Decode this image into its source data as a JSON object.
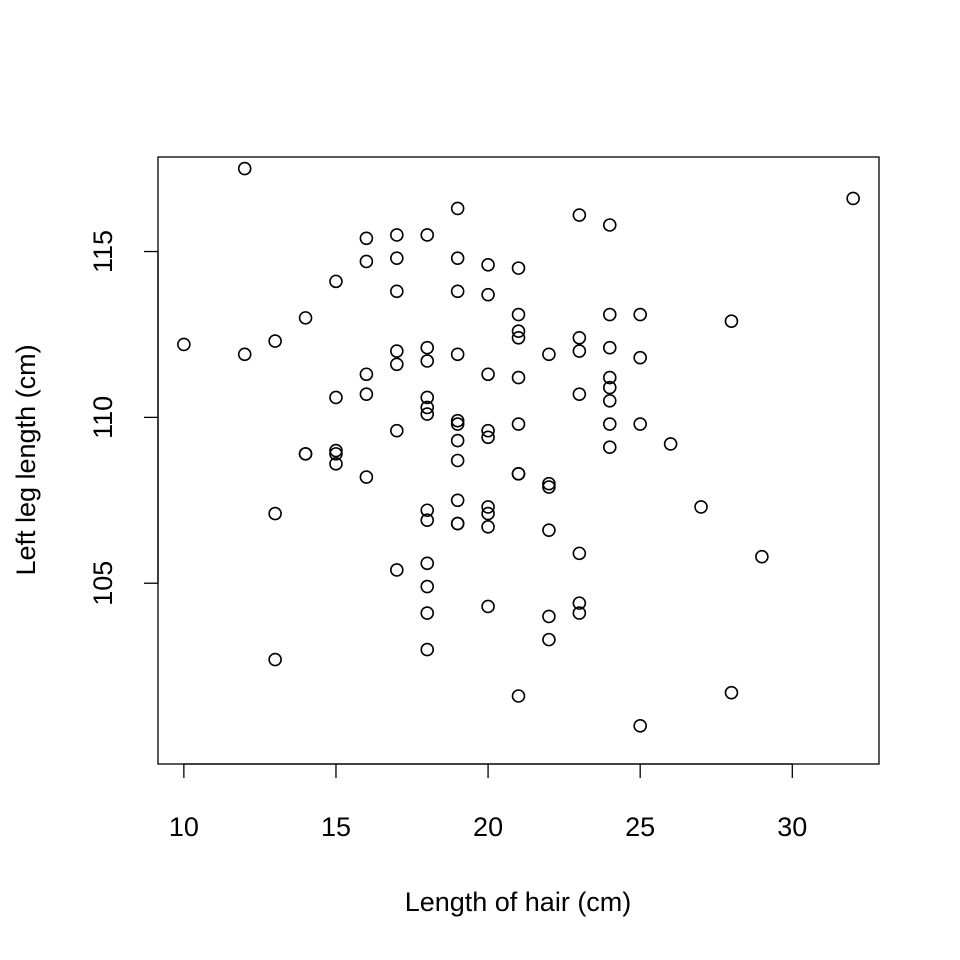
{
  "chart_data": {
    "type": "scatter",
    "title": "",
    "xlabel": "Length of hair (cm)",
    "ylabel": "Left leg length (cm)",
    "xlim": [
      9.15,
      32.85
    ],
    "ylim": [
      99.55,
      117.85
    ],
    "x_ticks": [
      10,
      15,
      20,
      25,
      30
    ],
    "y_ticks": [
      105,
      110,
      115
    ],
    "grid": false,
    "legend": "none",
    "marker": "open-circle",
    "colors": {
      "point": "#000000",
      "axis": "#000000",
      "background": "#ffffff"
    },
    "points": [
      [
        12,
        117.5
      ],
      [
        19,
        116.3
      ],
      [
        23,
        116.1
      ],
      [
        24,
        115.8
      ],
      [
        32,
        116.6
      ],
      [
        16,
        115.4
      ],
      [
        17,
        115.5
      ],
      [
        18,
        115.5
      ],
      [
        16,
        114.7
      ],
      [
        17,
        114.8
      ],
      [
        19,
        114.8
      ],
      [
        20,
        114.6
      ],
      [
        21,
        114.5
      ],
      [
        15,
        114.1
      ],
      [
        17,
        113.8
      ],
      [
        19,
        113.8
      ],
      [
        20,
        113.7
      ],
      [
        14,
        113.0
      ],
      [
        21,
        113.1
      ],
      [
        24,
        113.1
      ],
      [
        25,
        113.1
      ],
      [
        28,
        112.9
      ],
      [
        10,
        112.2
      ],
      [
        13,
        112.3
      ],
      [
        21,
        112.6
      ],
      [
        21,
        112.4
      ],
      [
        23,
        112.4
      ],
      [
        12,
        111.9
      ],
      [
        17,
        112.0
      ],
      [
        18,
        112.1
      ],
      [
        19,
        111.9
      ],
      [
        22,
        111.9
      ],
      [
        23,
        112.0
      ],
      [
        24,
        112.1
      ],
      [
        25,
        111.8
      ],
      [
        17,
        111.6
      ],
      [
        18,
        111.7
      ],
      [
        16,
        111.3
      ],
      [
        20,
        111.3
      ],
      [
        21,
        111.2
      ],
      [
        24,
        111.2
      ],
      [
        24,
        110.9
      ],
      [
        15,
        110.6
      ],
      [
        16,
        110.7
      ],
      [
        18,
        110.6
      ],
      [
        23,
        110.7
      ],
      [
        24,
        110.5
      ],
      [
        18,
        110.3
      ],
      [
        18,
        110.1
      ],
      [
        19,
        109.9
      ],
      [
        19,
        109.8
      ],
      [
        21,
        109.8
      ],
      [
        24,
        109.8
      ],
      [
        25,
        109.8
      ],
      [
        17,
        109.6
      ],
      [
        20,
        109.6
      ],
      [
        20,
        109.4
      ],
      [
        19,
        109.3
      ],
      [
        26,
        109.2
      ],
      [
        24,
        109.1
      ],
      [
        14,
        108.9
      ],
      [
        14,
        108.9
      ],
      [
        15,
        109.0
      ],
      [
        15,
        108.9
      ],
      [
        19,
        108.7
      ],
      [
        15,
        108.6
      ],
      [
        21,
        108.3
      ],
      [
        21,
        108.3
      ],
      [
        16,
        108.2
      ],
      [
        22,
        108.0
      ],
      [
        22,
        107.9
      ],
      [
        19,
        107.5
      ],
      [
        20,
        107.3
      ],
      [
        27,
        107.3
      ],
      [
        13,
        107.1
      ],
      [
        18,
        107.2
      ],
      [
        20,
        107.1
      ],
      [
        18,
        106.9
      ],
      [
        19,
        106.8
      ],
      [
        19,
        106.8
      ],
      [
        20,
        106.7
      ],
      [
        22,
        106.6
      ],
      [
        23,
        105.9
      ],
      [
        29,
        105.8
      ],
      [
        18,
        105.6
      ],
      [
        17,
        105.4
      ],
      [
        18,
        104.9
      ],
      [
        20,
        104.3
      ],
      [
        23,
        104.4
      ],
      [
        18,
        104.1
      ],
      [
        22,
        104.0
      ],
      [
        23,
        104.1
      ],
      [
        22,
        103.3
      ],
      [
        18,
        103.0
      ],
      [
        13,
        102.7
      ],
      [
        21,
        101.6
      ],
      [
        28,
        101.7
      ],
      [
        25,
        100.7
      ]
    ]
  }
}
